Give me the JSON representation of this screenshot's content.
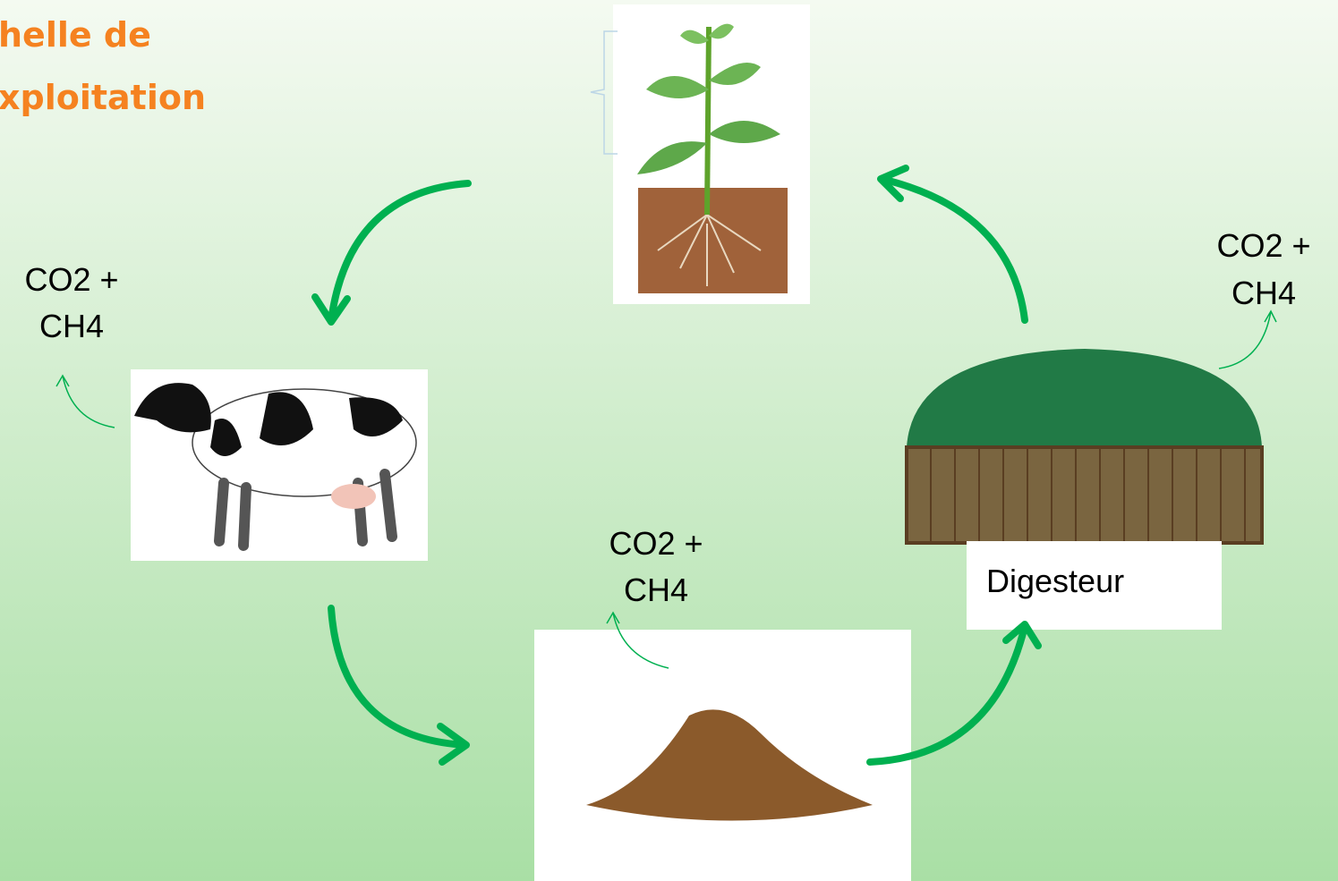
{
  "title": {
    "line1": "helle de",
    "line2": "xploitation"
  },
  "nodes": {
    "cow": {
      "emission": {
        "line1": "CO2 +",
        "line2": "CH4"
      }
    },
    "manure": {
      "emission": {
        "line1": "CO2 +",
        "line2": "CH4"
      }
    },
    "digester": {
      "label": "Digesteur",
      "emission": {
        "line1": "CO2 +",
        "line2": "CH4"
      }
    }
  }
}
